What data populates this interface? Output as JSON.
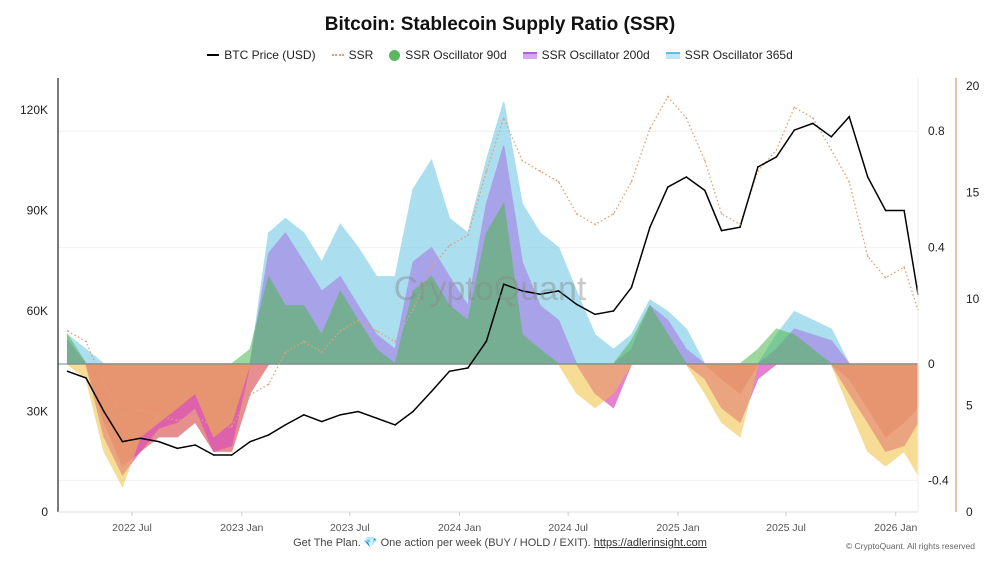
{
  "chart_data": {
    "type": "line",
    "title": "Bitcoin: Stablecoin Supply Ratio (SSR)",
    "legend_position": "top",
    "grid": true,
    "x_ticks": [
      "2022 Jul",
      "2023 Jan",
      "2023 Jul",
      "2024 Jan",
      "2024 Jul",
      "2025 Jan",
      "2025 Jul",
      "2026 Jan"
    ],
    "left_axis": {
      "ticks": [
        "0",
        "30K",
        "60K",
        "90K",
        "120K"
      ],
      "range": [
        0,
        120000
      ]
    },
    "oscillator_axis": {
      "ticks": [
        "-0.4",
        "0",
        "0.4",
        "0.8"
      ],
      "range": [
        -0.5,
        1.0
      ]
    },
    "ssr_axis": {
      "ticks": [
        "0",
        "5",
        "10",
        "15",
        "20"
      ],
      "range": [
        0,
        20
      ]
    },
    "x": [
      "2022-03",
      "2022-04",
      "2022-05",
      "2022-06",
      "2022-07",
      "2022-08",
      "2022-09",
      "2022-10",
      "2022-11",
      "2022-12",
      "2023-01",
      "2023-02",
      "2023-03",
      "2023-04",
      "2023-05",
      "2023-06",
      "2023-07",
      "2023-08",
      "2023-09",
      "2023-10",
      "2023-11",
      "2023-12",
      "2024-01",
      "2024-02",
      "2024-03",
      "2024-04",
      "2024-05",
      "2024-06",
      "2024-07",
      "2024-08",
      "2024-09",
      "2024-10",
      "2024-11",
      "2024-12",
      "2025-01",
      "2025-02",
      "2025-03",
      "2025-04",
      "2025-05",
      "2025-06",
      "2025-07",
      "2025-08",
      "2025-09",
      "2025-10",
      "2025-11",
      "2025-12",
      "2026-01",
      "2026-02"
    ],
    "series": [
      {
        "name": "BTC Price (USD)",
        "axis": "left",
        "style": "line",
        "color": "#000000",
        "values": [
          42000,
          40000,
          30000,
          21000,
          22000,
          21000,
          19000,
          20000,
          17000,
          17000,
          21000,
          23000,
          26000,
          29000,
          27000,
          29000,
          30000,
          28000,
          26000,
          30000,
          36000,
          42000,
          43000,
          51000,
          68000,
          66000,
          65000,
          66000,
          62000,
          59000,
          60000,
          67000,
          85000,
          97000,
          100000,
          96000,
          84000,
          85000,
          103000,
          106000,
          114000,
          116000,
          112000,
          118000,
          100000,
          90000,
          90000,
          65000
        ]
      },
      {
        "name": "SSR",
        "axis": "ssr",
        "style": "dotted",
        "color": "#e0a070",
        "values": [
          8.5,
          8.0,
          6.0,
          4.5,
          4.8,
          4.5,
          4.3,
          4.5,
          4.0,
          4.0,
          5.5,
          6.0,
          7.5,
          8.0,
          7.5,
          8.5,
          9.0,
          8.5,
          8.0,
          9.5,
          11.5,
          12.5,
          13.0,
          16.0,
          18.5,
          16.5,
          16.0,
          15.5,
          14.0,
          13.5,
          14.0,
          15.5,
          18.0,
          19.5,
          18.5,
          16.5,
          14.0,
          13.5,
          16.0,
          17.0,
          19.0,
          18.5,
          17.0,
          15.5,
          12.0,
          11.0,
          11.5,
          9.5
        ]
      },
      {
        "name": "SSR Oscillator 365d",
        "axis": "oscillator",
        "style": "area",
        "color": "#8fd3ea",
        "negative_color": "#e06a6a",
        "values": [
          0.1,
          0.05,
          -0.2,
          -0.35,
          -0.3,
          -0.25,
          -0.25,
          -0.2,
          -0.3,
          -0.3,
          -0.1,
          0.45,
          0.5,
          0.45,
          0.35,
          0.48,
          0.4,
          0.3,
          0.3,
          0.6,
          0.7,
          0.5,
          0.45,
          0.7,
          0.9,
          0.55,
          0.45,
          0.4,
          0.25,
          0.1,
          0.05,
          0.1,
          0.22,
          0.18,
          0.12,
          0.0,
          -0.05,
          -0.1,
          0.0,
          0.1,
          0.18,
          0.15,
          0.12,
          -0.05,
          -0.15,
          -0.25,
          -0.2,
          -0.15
        ]
      },
      {
        "name": "SSR Oscillator 200d",
        "axis": "oscillator",
        "style": "area",
        "color": "#a78be6",
        "negative_color": "#d94fb8",
        "values": [
          0.08,
          0.0,
          -0.25,
          -0.38,
          -0.3,
          -0.22,
          -0.2,
          -0.15,
          -0.3,
          -0.28,
          0.0,
          0.38,
          0.45,
          0.35,
          0.25,
          0.3,
          0.2,
          0.1,
          0.05,
          0.35,
          0.4,
          0.3,
          0.2,
          0.55,
          0.75,
          0.35,
          0.2,
          0.15,
          0.0,
          -0.1,
          -0.15,
          0.05,
          0.2,
          0.15,
          0.05,
          -0.05,
          -0.15,
          -0.2,
          -0.05,
          0.05,
          0.12,
          0.1,
          0.08,
          -0.1,
          -0.2,
          -0.3,
          -0.28,
          -0.2
        ]
      },
      {
        "name": "SSR Oscillator 90d",
        "axis": "oscillator",
        "style": "area",
        "color": "#4fb84f",
        "negative_color": "#f0c040",
        "values": [
          0.1,
          -0.05,
          -0.3,
          -0.42,
          -0.25,
          -0.2,
          -0.15,
          -0.1,
          -0.25,
          -0.2,
          0.05,
          0.3,
          0.2,
          0.2,
          0.1,
          0.25,
          0.15,
          0.05,
          0.0,
          0.25,
          0.3,
          0.2,
          0.15,
          0.45,
          0.55,
          0.1,
          0.05,
          0.0,
          -0.1,
          -0.15,
          -0.1,
          0.08,
          0.2,
          0.1,
          0.0,
          -0.1,
          -0.2,
          -0.25,
          0.05,
          0.12,
          0.1,
          0.05,
          0.0,
          -0.15,
          -0.3,
          -0.35,
          -0.3,
          -0.38
        ]
      }
    ]
  },
  "legend": [
    {
      "label": "BTC Price (USD)",
      "icon": "line",
      "color": "#000000"
    },
    {
      "label": "SSR",
      "icon": "dotted-line",
      "color": "#e0a070"
    },
    {
      "label": "SSR Oscillator 90d",
      "icon": "circle",
      "color": "#5cb85c"
    },
    {
      "label": "SSR Oscillator 200d",
      "icon": "bar",
      "color": "#c77be6"
    },
    {
      "label": "SSR Oscillator 365d",
      "icon": "bar",
      "color": "#8fd3ea"
    }
  ],
  "watermark": "CryptoQuant",
  "footer": {
    "text": "Get The Plan. 💎 One action per week (BUY / HOLD / EXIT).",
    "link": "https://adlerinsight.com",
    "copyright": "© CryptoQuant. All rights reserved"
  }
}
